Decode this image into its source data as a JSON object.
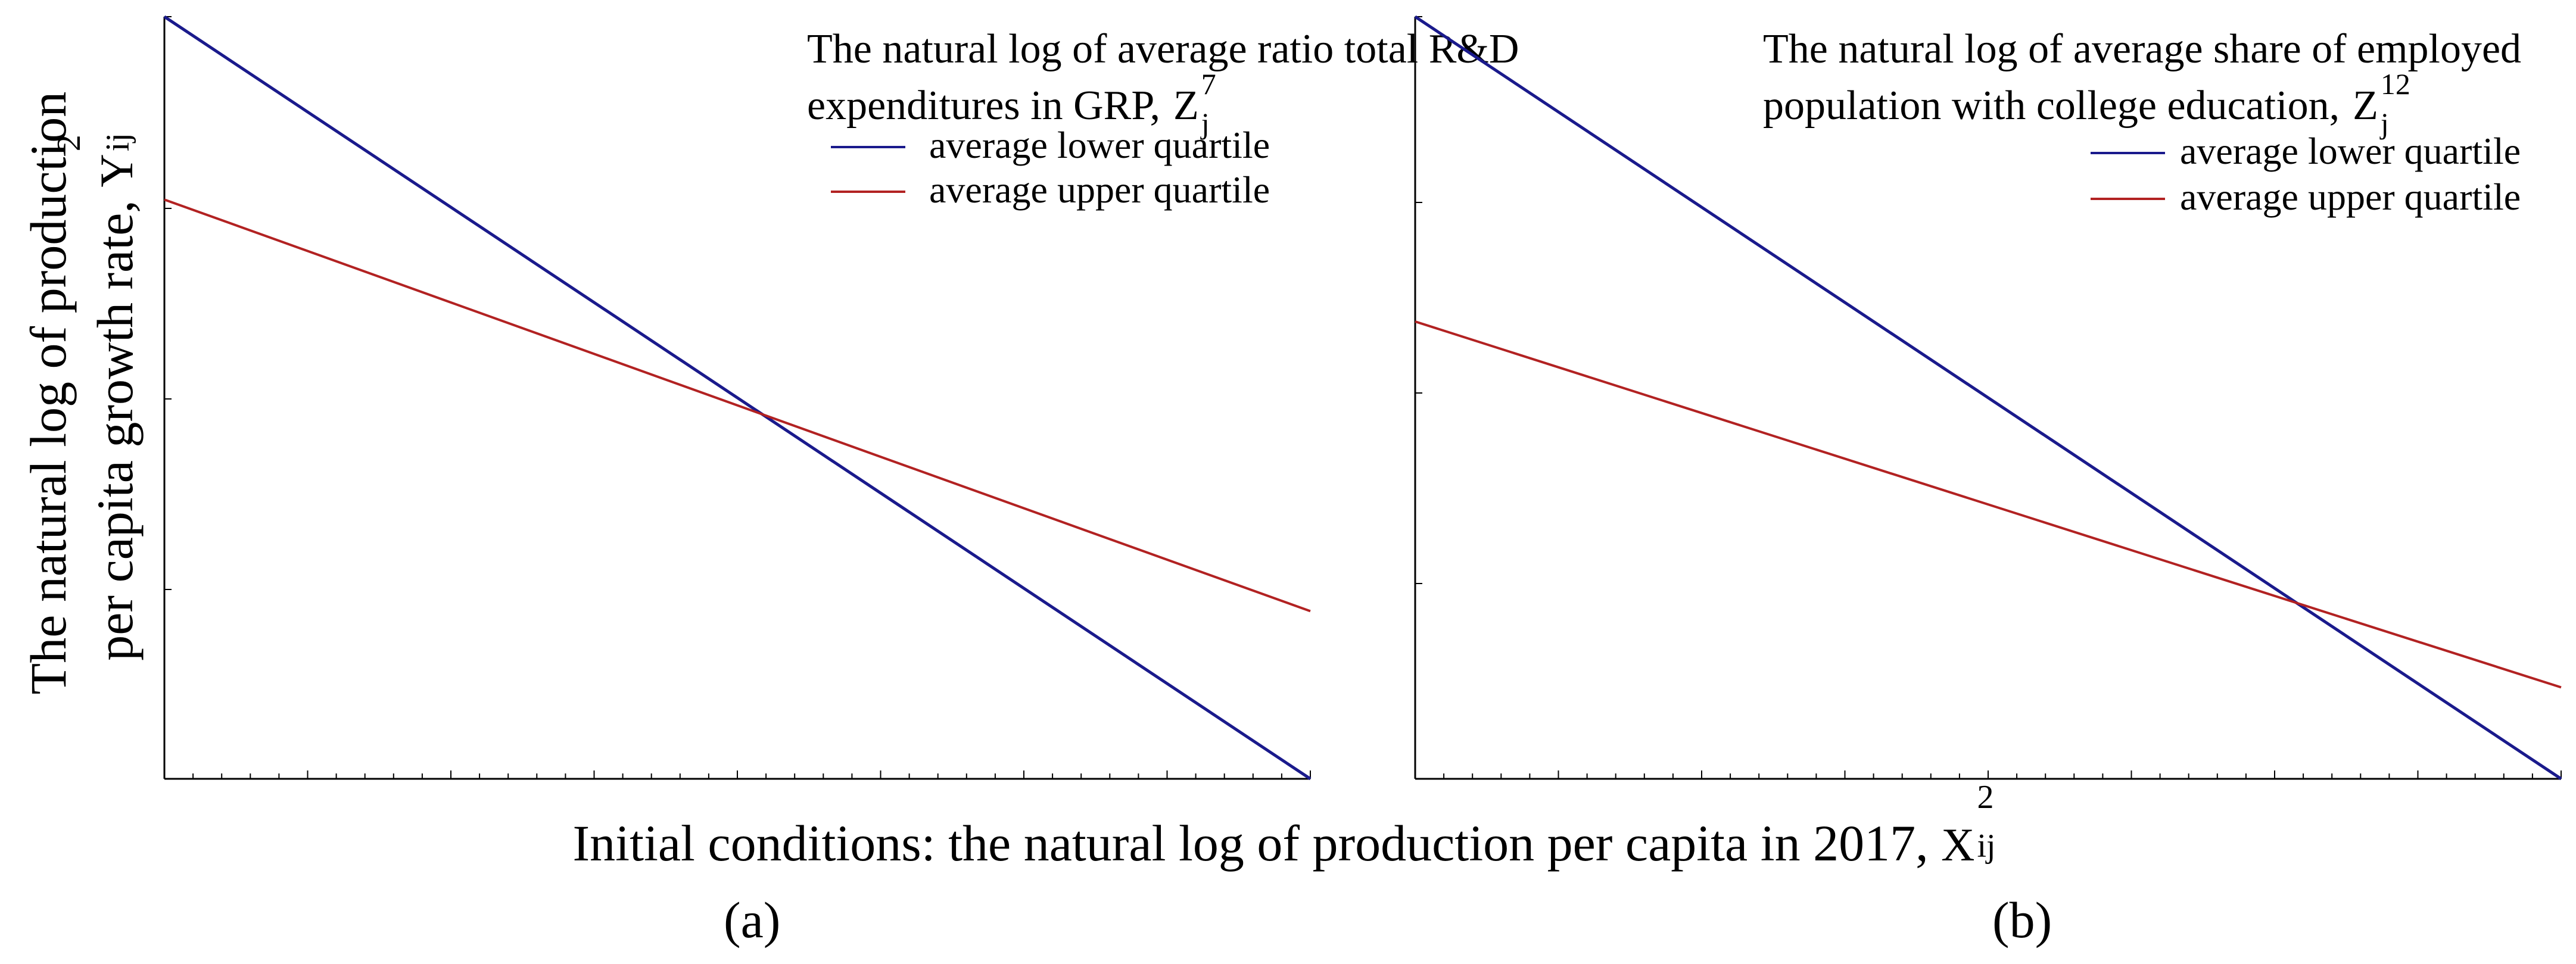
{
  "y_axis_title": {
    "line1": "The natural log of production",
    "line2_text": "per capita growth rate,",
    "symbol": "Y",
    "sup": "2",
    "sub": "ij"
  },
  "x_axis_title": {
    "text": "Initial conditions: the natural log of production per capita in 2017,",
    "symbol": "X",
    "sup": "2",
    "sub": "ij"
  },
  "colors": {
    "lower": "#1a1a8c",
    "upper": "#b22222",
    "axis": "#000000"
  },
  "chart_data": [
    {
      "type": "line",
      "panel": "(a)",
      "title": [
        "The natural log of average ratio total R&D",
        "expenditures in GRP,"
      ],
      "title_symbol": "Z",
      "title_sup": "7",
      "title_sub": "j",
      "x": [
        0,
        1
      ],
      "xlim": [
        0,
        1
      ],
      "ylim": [
        0,
        1
      ],
      "series": [
        {
          "name": "average lower quartile",
          "values": [
            1.0,
            0.0
          ]
        },
        {
          "name": "average upper quartile",
          "values": [
            0.76,
            0.22
          ]
        }
      ]
    },
    {
      "type": "line",
      "panel": "(b)",
      "title": [
        "The natural log of average share of employed",
        "population with college education,"
      ],
      "title_symbol": "Z",
      "title_sup": "12",
      "title_sub": "j",
      "x": [
        0,
        1
      ],
      "xlim": [
        0,
        1
      ],
      "ylim": [
        0,
        1
      ],
      "series": [
        {
          "name": "average lower quartile",
          "values": [
            1.0,
            0.0
          ]
        },
        {
          "name": "average upper quartile",
          "values": [
            0.6,
            0.12
          ]
        }
      ]
    }
  ]
}
